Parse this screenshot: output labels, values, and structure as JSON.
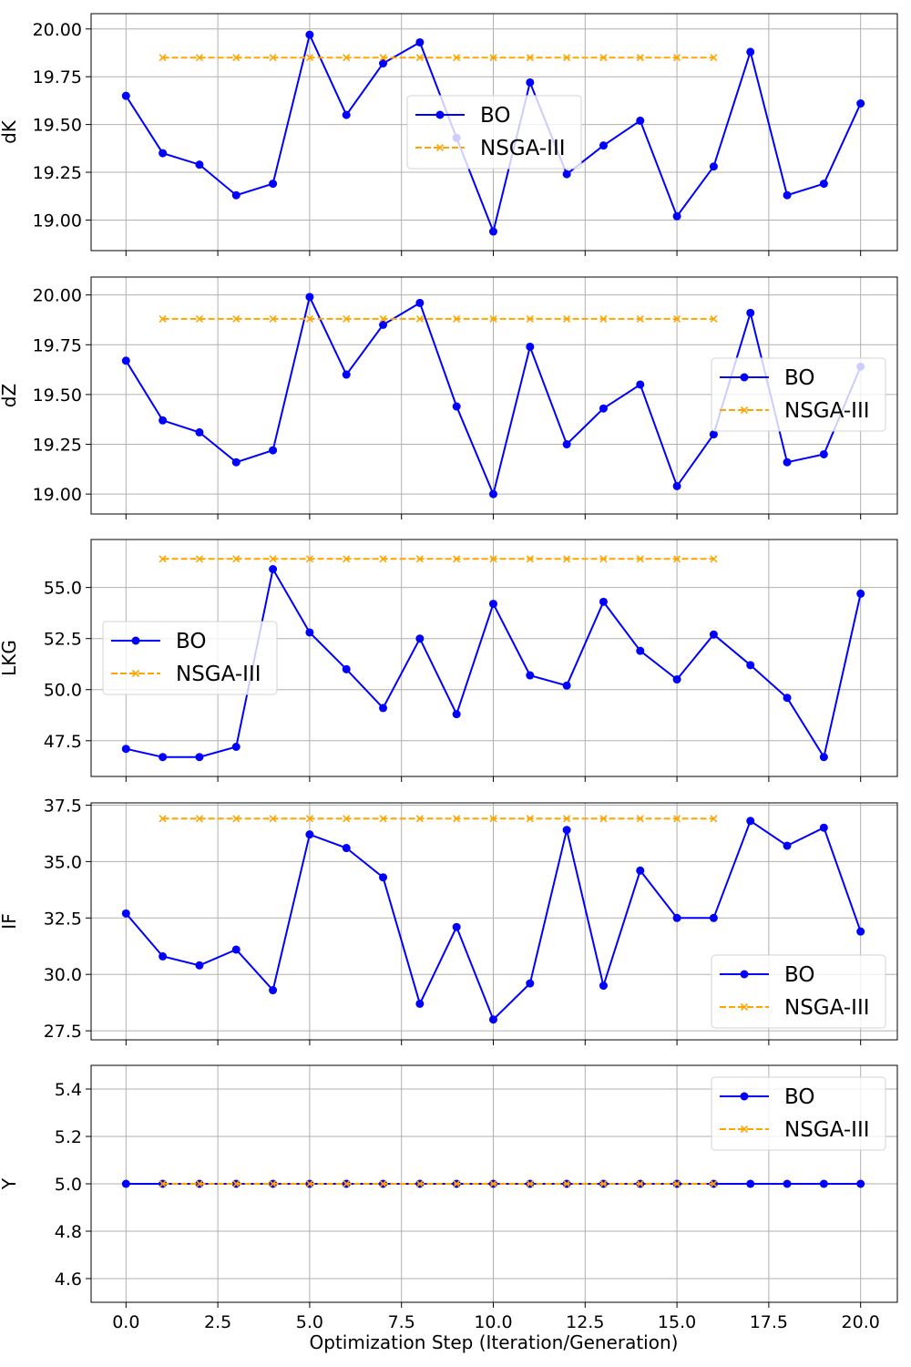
{
  "chart_data": [
    {
      "type": "line",
      "ylabel": "dK",
      "ylim": [
        18.84,
        20.08
      ],
      "yticks": [
        "19.00",
        "19.25",
        "19.50",
        "19.75",
        "20.00"
      ],
      "legend_position": "center",
      "series": [
        {
          "name": "BO",
          "color": "#0000ff",
          "marker": "circle",
          "linestyle": "solid",
          "x": [
            0,
            1,
            2,
            3,
            4,
            5,
            6,
            7,
            8,
            9,
            10,
            11,
            12,
            13,
            14,
            15,
            16,
            17,
            18,
            19,
            20
          ],
          "values": [
            19.65,
            19.35,
            19.29,
            19.13,
            19.19,
            19.97,
            19.55,
            19.82,
            19.93,
            19.43,
            18.94,
            19.72,
            19.24,
            19.39,
            19.52,
            19.02,
            19.28,
            19.88,
            19.13,
            19.19,
            19.61
          ]
        },
        {
          "name": "NSGA-III",
          "color": "#ffa500",
          "marker": "x",
          "linestyle": "dashed",
          "x": [
            1,
            2,
            3,
            4,
            5,
            6,
            7,
            8,
            9,
            10,
            11,
            12,
            13,
            14,
            15,
            16
          ],
          "values": [
            19.85,
            19.85,
            19.85,
            19.85,
            19.85,
            19.85,
            19.85,
            19.85,
            19.85,
            19.85,
            19.85,
            19.85,
            19.85,
            19.85,
            19.85,
            19.85
          ]
        }
      ]
    },
    {
      "type": "line",
      "ylabel": "dZ",
      "ylim": [
        18.9,
        20.09
      ],
      "yticks": [
        "19.00",
        "19.25",
        "19.50",
        "19.75",
        "20.00"
      ],
      "legend_position": "center-right",
      "series": [
        {
          "name": "BO",
          "color": "#0000ff",
          "marker": "circle",
          "linestyle": "solid",
          "x": [
            0,
            1,
            2,
            3,
            4,
            5,
            6,
            7,
            8,
            9,
            10,
            11,
            12,
            13,
            14,
            15,
            16,
            17,
            18,
            19,
            20
          ],
          "values": [
            19.67,
            19.37,
            19.31,
            19.16,
            19.22,
            19.99,
            19.6,
            19.85,
            19.96,
            19.44,
            19.0,
            19.74,
            19.25,
            19.43,
            19.55,
            19.04,
            19.3,
            19.91,
            19.16,
            19.2,
            19.64
          ]
        },
        {
          "name": "NSGA-III",
          "color": "#ffa500",
          "marker": "x",
          "linestyle": "dashed",
          "x": [
            1,
            2,
            3,
            4,
            5,
            6,
            7,
            8,
            9,
            10,
            11,
            12,
            13,
            14,
            15,
            16
          ],
          "values": [
            19.88,
            19.88,
            19.88,
            19.88,
            19.88,
            19.88,
            19.88,
            19.88,
            19.88,
            19.88,
            19.88,
            19.88,
            19.88,
            19.88,
            19.88,
            19.88
          ]
        }
      ]
    },
    {
      "type": "line",
      "ylabel": "LKG",
      "ylim": [
        45.75,
        57.35
      ],
      "yticks": [
        "47.5",
        "50.0",
        "52.5",
        "55.0"
      ],
      "legend_position": "center-left",
      "series": [
        {
          "name": "BO",
          "color": "#0000ff",
          "marker": "circle",
          "linestyle": "solid",
          "x": [
            0,
            1,
            2,
            3,
            4,
            5,
            6,
            7,
            8,
            9,
            10,
            11,
            12,
            13,
            14,
            15,
            16,
            17,
            18,
            19,
            20
          ],
          "values": [
            47.1,
            46.7,
            46.7,
            47.2,
            55.9,
            52.8,
            51.0,
            49.1,
            52.5,
            48.8,
            54.2,
            50.7,
            50.2,
            54.3,
            51.9,
            50.5,
            52.7,
            51.2,
            49.6,
            46.7,
            54.7
          ]
        },
        {
          "name": "NSGA-III",
          "color": "#ffa500",
          "marker": "x",
          "linestyle": "dashed",
          "x": [
            1,
            2,
            3,
            4,
            5,
            6,
            7,
            8,
            9,
            10,
            11,
            12,
            13,
            14,
            15,
            16
          ],
          "values": [
            56.4,
            56.4,
            56.4,
            56.4,
            56.4,
            56.4,
            56.4,
            56.4,
            56.4,
            56.4,
            56.4,
            56.4,
            56.4,
            56.4,
            56.4,
            56.4
          ]
        }
      ]
    },
    {
      "type": "line",
      "ylabel": "IF",
      "ylim": [
        27.1,
        37.6
      ],
      "yticks": [
        "27.5",
        "30.0",
        "32.5",
        "35.0",
        "37.5"
      ],
      "legend_position": "lower-right",
      "series": [
        {
          "name": "BO",
          "color": "#0000ff",
          "marker": "circle",
          "linestyle": "solid",
          "x": [
            0,
            1,
            2,
            3,
            4,
            5,
            6,
            7,
            8,
            9,
            10,
            11,
            12,
            13,
            14,
            15,
            16,
            17,
            18,
            19,
            20
          ],
          "values": [
            32.7,
            30.8,
            30.4,
            31.1,
            29.3,
            36.2,
            35.6,
            34.3,
            28.7,
            32.1,
            28.0,
            29.6,
            36.4,
            29.5,
            34.6,
            32.5,
            32.5,
            36.8,
            35.7,
            36.5,
            31.9
          ]
        },
        {
          "name": "NSGA-III",
          "color": "#ffa500",
          "marker": "x",
          "linestyle": "dashed",
          "x": [
            1,
            2,
            3,
            4,
            5,
            6,
            7,
            8,
            9,
            10,
            11,
            12,
            13,
            14,
            15,
            16
          ],
          "values": [
            36.9,
            36.9,
            36.9,
            36.9,
            36.9,
            36.9,
            36.9,
            36.9,
            36.9,
            36.9,
            36.9,
            36.9,
            36.9,
            36.9,
            36.9,
            36.9
          ]
        }
      ]
    },
    {
      "type": "line",
      "ylabel": "Y",
      "ylim": [
        4.5,
        5.5
      ],
      "yticks": [
        "4.6",
        "4.8",
        "5.0",
        "5.2",
        "5.4"
      ],
      "legend_position": "upper-right",
      "series": [
        {
          "name": "BO",
          "color": "#0000ff",
          "marker": "circle",
          "linestyle": "solid",
          "x": [
            0,
            1,
            2,
            3,
            4,
            5,
            6,
            7,
            8,
            9,
            10,
            11,
            12,
            13,
            14,
            15,
            16,
            17,
            18,
            19,
            20
          ],
          "values": [
            5.0,
            5.0,
            5.0,
            5.0,
            5.0,
            5.0,
            5.0,
            5.0,
            5.0,
            5.0,
            5.0,
            5.0,
            5.0,
            5.0,
            5.0,
            5.0,
            5.0,
            5.0,
            5.0,
            5.0,
            5.0
          ]
        },
        {
          "name": "NSGA-III",
          "color": "#ffa500",
          "marker": "x",
          "linestyle": "dashed",
          "x": [
            1,
            2,
            3,
            4,
            5,
            6,
            7,
            8,
            9,
            10,
            11,
            12,
            13,
            14,
            15,
            16
          ],
          "values": [
            5.0,
            5.0,
            5.0,
            5.0,
            5.0,
            5.0,
            5.0,
            5.0,
            5.0,
            5.0,
            5.0,
            5.0,
            5.0,
            5.0,
            5.0,
            5.0
          ]
        }
      ]
    }
  ],
  "shared_x_axis": {
    "label": "Optimization Step (Iteration/Generation)",
    "xlim": [
      -0.95,
      21.0
    ],
    "ticks": [
      "0.0",
      "2.5",
      "5.0",
      "7.5",
      "10.0",
      "12.5",
      "15.0",
      "17.5",
      "20.0"
    ],
    "grid": true
  }
}
